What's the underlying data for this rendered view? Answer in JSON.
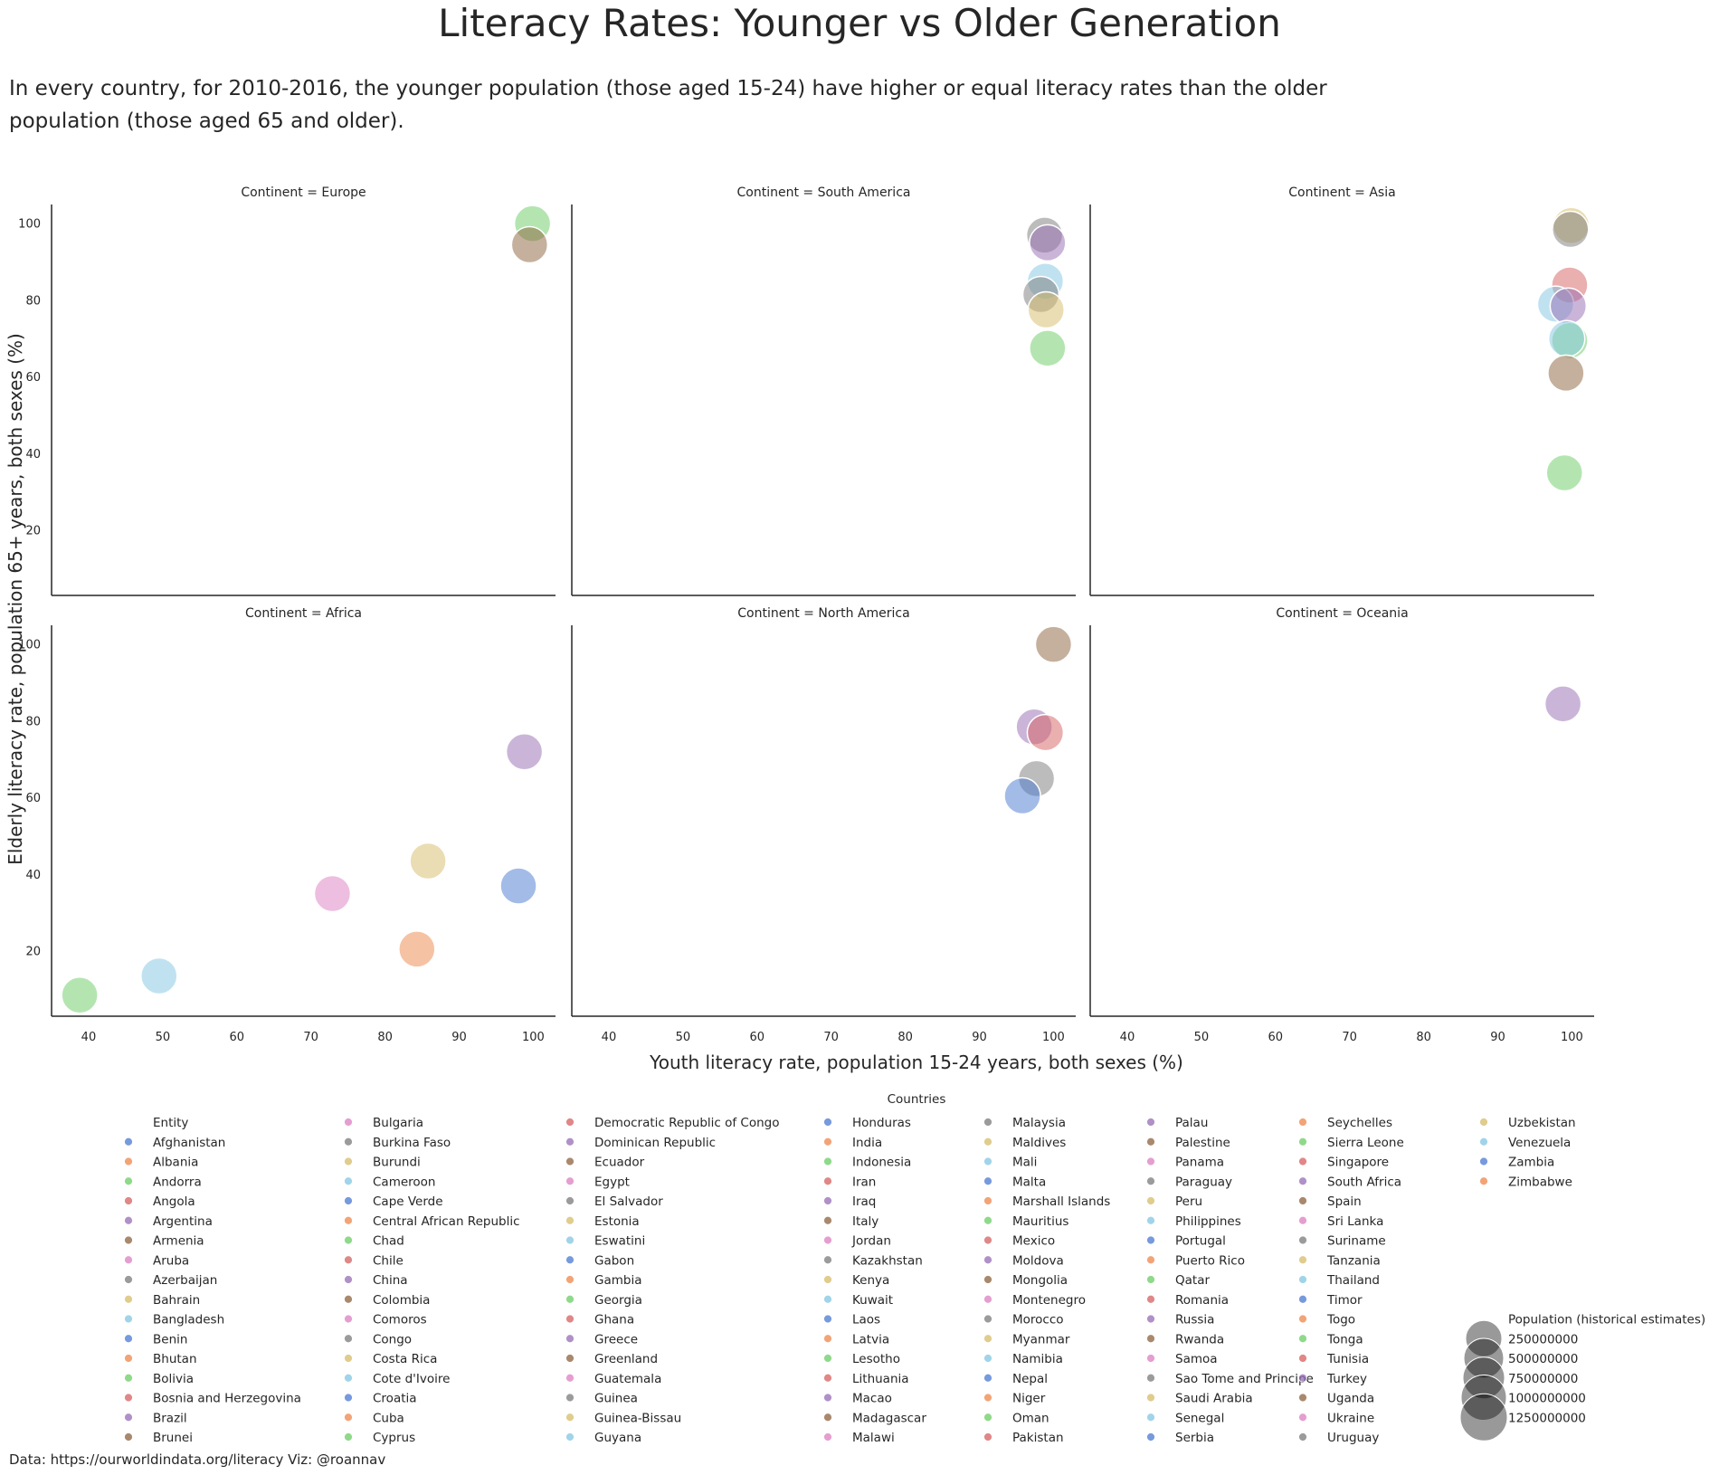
{
  "title": "Literacy Rates: Younger vs Older Generation",
  "subtitle": "In every country, for 2010-2016, the younger population (those aged 15-24) have higher or equal literacy rates than the older population (those aged 65 and older).",
  "source": "Data: https://ourworldindata.org/literacy   Viz: @roannav",
  "chart_data": {
    "type": "scatter",
    "xlabel": "Youth literacy rate, population 15-24 years, both sexes (%)",
    "ylabel": "Elderly literacy rate, population 65+ years, both sexes (%)",
    "xlim": [
      35,
      103
    ],
    "ylim": [
      3,
      105
    ],
    "xticks": [
      40,
      50,
      60,
      70,
      80,
      90,
      100
    ],
    "yticks": [
      20,
      40,
      60,
      80,
      100
    ],
    "grid": false,
    "facet_prefix": "Continent = ",
    "palette": [
      "#4878d0",
      "#ee854a",
      "#6acc64",
      "#d65f5f",
      "#956cb4",
      "#8c613c",
      "#dc7ec0",
      "#797979",
      "#d5bb67",
      "#82c6e2"
    ],
    "panels": [
      {
        "continent": "Europe",
        "points": [
          {
            "x": 99.9,
            "y": 100,
            "color": "#6acc64"
          },
          {
            "x": 99.5,
            "y": 94.5,
            "color": "#8c613c"
          }
        ]
      },
      {
        "continent": "South America",
        "points": [
          {
            "x": 98.8,
            "y": 97,
            "color": "#797979"
          },
          {
            "x": 99.2,
            "y": 95,
            "color": "#956cb4"
          },
          {
            "x": 98.9,
            "y": 85,
            "color": "#82c6e2"
          },
          {
            "x": 98.3,
            "y": 81.5,
            "color": "#797979"
          },
          {
            "x": 99.0,
            "y": 77.5,
            "color": "#d5bb67"
          },
          {
            "x": 99.2,
            "y": 67.5,
            "color": "#6acc64"
          }
        ]
      },
      {
        "continent": "Asia",
        "points": [
          {
            "x": 99.9,
            "y": 99.5,
            "color": "#d5bb67"
          },
          {
            "x": 99.8,
            "y": 98.5,
            "color": "#797979"
          },
          {
            "x": 99.7,
            "y": 84,
            "color": "#d65f5f"
          },
          {
            "x": 97.8,
            "y": 79,
            "color": "#82c6e2"
          },
          {
            "x": 99.5,
            "y": 78.5,
            "color": "#956cb4"
          },
          {
            "x": 99.7,
            "y": 69.5,
            "color": "#6acc64"
          },
          {
            "x": 99.3,
            "y": 70,
            "color": "#82c6e2"
          },
          {
            "x": 99.2,
            "y": 61,
            "color": "#8c613c"
          },
          {
            "x": 99.0,
            "y": 35,
            "color": "#6acc64"
          }
        ]
      },
      {
        "continent": "Africa",
        "points": [
          {
            "x": 98.8,
            "y": 72,
            "color": "#956cb4"
          },
          {
            "x": 85.8,
            "y": 43.5,
            "color": "#d5bb67"
          },
          {
            "x": 98.0,
            "y": 37,
            "color": "#4878d0"
          },
          {
            "x": 72.9,
            "y": 35,
            "color": "#dc7ec0"
          },
          {
            "x": 84.3,
            "y": 20.5,
            "color": "#ee854a"
          },
          {
            "x": 49.5,
            "y": 13.5,
            "color": "#82c6e2"
          },
          {
            "x": 38.8,
            "y": 8.5,
            "color": "#6acc64"
          }
        ]
      },
      {
        "continent": "North America",
        "points": [
          {
            "x": 100,
            "y": 100,
            "color": "#8c613c"
          },
          {
            "x": 97.4,
            "y": 78.5,
            "color": "#956cb4"
          },
          {
            "x": 98.9,
            "y": 77,
            "color": "#d65f5f"
          },
          {
            "x": 97.7,
            "y": 65,
            "color": "#797979"
          },
          {
            "x": 95.8,
            "y": 60.5,
            "color": "#4878d0"
          }
        ]
      },
      {
        "continent": "Oceania",
        "points": [
          {
            "x": 98.8,
            "y": 84.5,
            "color": "#956cb4"
          }
        ]
      }
    ],
    "legend": {
      "title": "Countries",
      "hue_title": "Entity",
      "size_title": "Population (historical estimates)",
      "size_values": [
        "250000000",
        "500000000",
        "750000000",
        "1000000000",
        "1250000000"
      ],
      "entities": [
        "Afghanistan",
        "Albania",
        "Andorra",
        "Angola",
        "Argentina",
        "Armenia",
        "Aruba",
        "Azerbaijan",
        "Bahrain",
        "Bangladesh",
        "Benin",
        "Bhutan",
        "Bolivia",
        "Bosnia and Herzegovina",
        "Brazil",
        "Brunei",
        "Bulgaria",
        "Burkina Faso",
        "Burundi",
        "Cameroon",
        "Cape Verde",
        "Central African Republic",
        "Chad",
        "Chile",
        "China",
        "Colombia",
        "Comoros",
        "Congo",
        "Costa Rica",
        "Cote d'Ivoire",
        "Croatia",
        "Cuba",
        "Cyprus",
        "Democratic Republic of Congo",
        "Dominican Republic",
        "Ecuador",
        "Egypt",
        "El Salvador",
        "Estonia",
        "Eswatini",
        "Gabon",
        "Gambia",
        "Georgia",
        "Ghana",
        "Greece",
        "Greenland",
        "Guatemala",
        "Guinea",
        "Guinea-Bissau",
        "Guyana",
        "Honduras",
        "India",
        "Indonesia",
        "Iran",
        "Iraq",
        "Italy",
        "Jordan",
        "Kazakhstan",
        "Kenya",
        "Kuwait",
        "Laos",
        "Latvia",
        "Lesotho",
        "Lithuania",
        "Macao",
        "Madagascar",
        "Malawi",
        "Malaysia",
        "Maldives",
        "Mali",
        "Malta",
        "Marshall Islands",
        "Mauritius",
        "Mexico",
        "Moldova",
        "Mongolia",
        "Montenegro",
        "Morocco",
        "Myanmar",
        "Namibia",
        "Nepal",
        "Niger",
        "Oman",
        "Pakistan",
        "Palau",
        "Palestine",
        "Panama",
        "Paraguay",
        "Peru",
        "Philippines",
        "Portugal",
        "Puerto Rico",
        "Qatar",
        "Romania",
        "Russia",
        "Rwanda",
        "Samoa",
        "Sao Tome and Principe",
        "Saudi Arabia",
        "Senegal",
        "Serbia",
        "Seychelles",
        "Sierra Leone",
        "Singapore",
        "South Africa",
        "Spain",
        "Sri Lanka",
        "Suriname",
        "Tanzania",
        "Thailand",
        "Timor",
        "Togo",
        "Tonga",
        "Tunisia",
        "Turkey",
        "Uganda",
        "Ukraine",
        "Uruguay",
        "Uzbekistan",
        "Venezuela",
        "Zambia",
        "Zimbabwe"
      ]
    }
  }
}
